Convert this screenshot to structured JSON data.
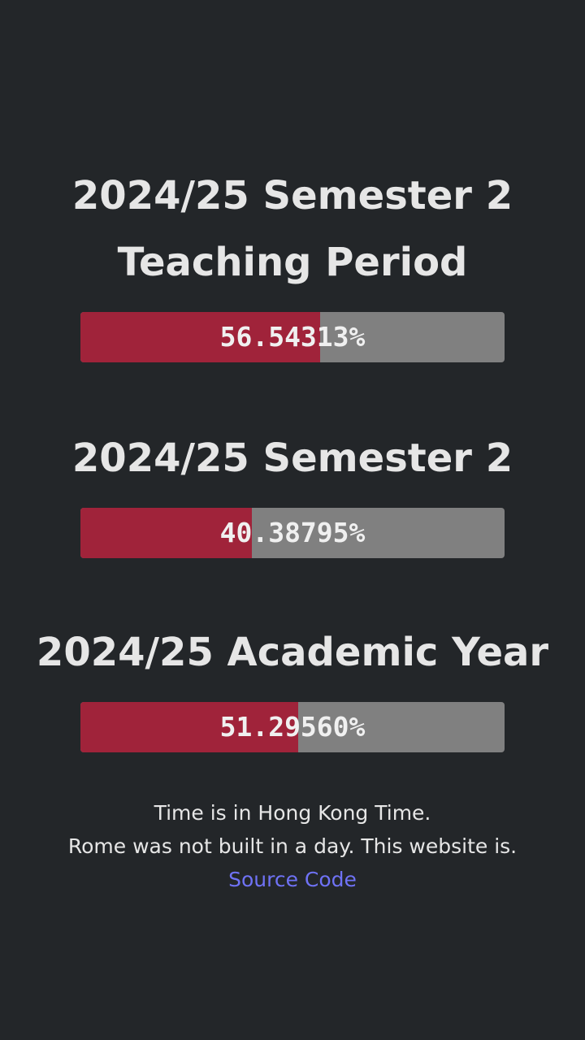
{
  "progress_bars": [
    {
      "title_lines": [
        "2024/25 Semester 2",
        "Teaching Period"
      ],
      "percent_label": "56.54313%",
      "percent": 56.54313
    },
    {
      "title_lines": [
        "2024/25 Semester 2"
      ],
      "percent_label": "40.38795%",
      "percent": 40.38795
    },
    {
      "title_lines": [
        "2024/25 Academic Year"
      ],
      "percent_label": "51.29560%",
      "percent": 51.2956
    }
  ],
  "footer": {
    "timezone_note": "Time is in Hong Kong Time.",
    "tagline": "Rome was not built in a day. This website is.",
    "source_link": "Source Code"
  },
  "colors": {
    "background": "#232629",
    "bar_fill": "#a0233a",
    "bar_track": "#808080",
    "text": "#e6e6e6",
    "link": "#6f72f5"
  }
}
